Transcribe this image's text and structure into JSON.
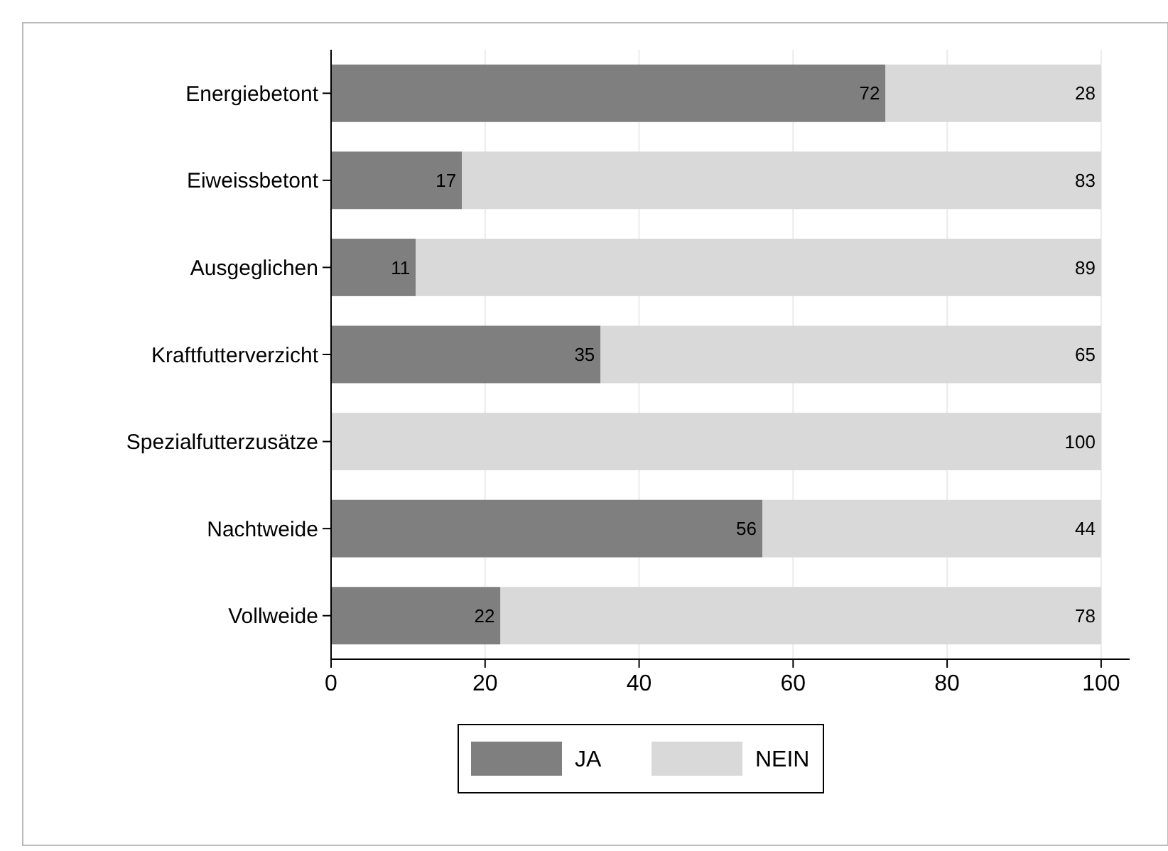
{
  "chart_data": {
    "type": "bar",
    "orientation": "horizontal",
    "stacked": true,
    "categories": [
      "Energiebetont",
      "Eiweissbetont",
      "Ausgeglichen",
      "Kraftfutterverzicht",
      "Spezialfutterzusätze",
      "Nachtweide",
      "Vollweide"
    ],
    "series": [
      {
        "name": "JA",
        "color": "#7f7f7f",
        "values": [
          72,
          17,
          11,
          35,
          0,
          56,
          22
        ],
        "value_labels": [
          "72",
          "17",
          "11",
          "35",
          null,
          "56",
          "22"
        ]
      },
      {
        "name": "NEIN",
        "color": "#d9d9d9",
        "values": [
          28,
          83,
          89,
          65,
          100,
          44,
          78
        ],
        "value_labels": [
          "28",
          "83",
          "89",
          "65",
          "100",
          "44",
          "78"
        ]
      }
    ],
    "xlim": [
      0,
      103.7
    ],
    "xticks": [
      0,
      20,
      40,
      60,
      80,
      100
    ],
    "grid": "x",
    "legend": "bottom"
  }
}
